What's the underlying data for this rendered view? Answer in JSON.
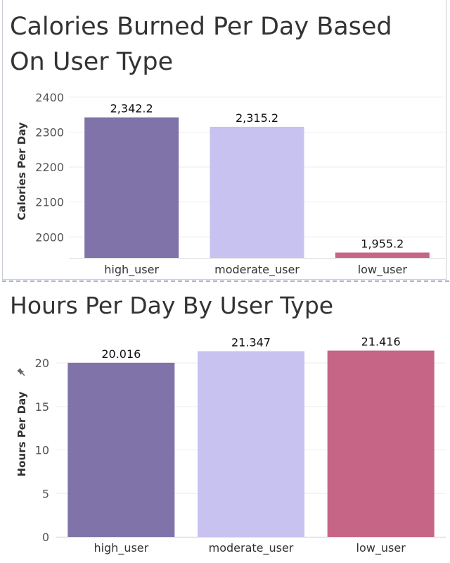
{
  "chart_data": [
    {
      "type": "bar",
      "title": "Calories Burned Per Day Based On User Type",
      "xlabel": "",
      "ylabel": "Calories Per Day",
      "categories": [
        "high_user",
        "moderate_user",
        "low_user"
      ],
      "values": [
        2342.2,
        2315.2,
        1955.2
      ],
      "value_labels": [
        "2,342.2",
        "2,315.2",
        "1,955.2"
      ],
      "ylim": [
        1940,
        2420
      ],
      "yticks": [
        2000,
        2100,
        2200,
        2300,
        2400
      ],
      "colors": [
        "#8073a9",
        "#c8c2f1",
        "#c66585"
      ],
      "grid": true
    },
    {
      "type": "bar",
      "title": "Hours Per Day By User Type",
      "xlabel": "",
      "ylabel": "Hours Per Day",
      "categories": [
        "high_user",
        "moderate_user",
        "low_user"
      ],
      "values": [
        20.016,
        21.347,
        21.416
      ],
      "value_labels": [
        "20.016",
        "21.347",
        "21.416"
      ],
      "ylim": [
        0,
        23
      ],
      "yticks": [
        0,
        5,
        10,
        15,
        20
      ],
      "colors": [
        "#8073a9",
        "#c8c2f1",
        "#c66585"
      ],
      "grid": true,
      "ylabel_icon": "pin-icon"
    }
  ]
}
